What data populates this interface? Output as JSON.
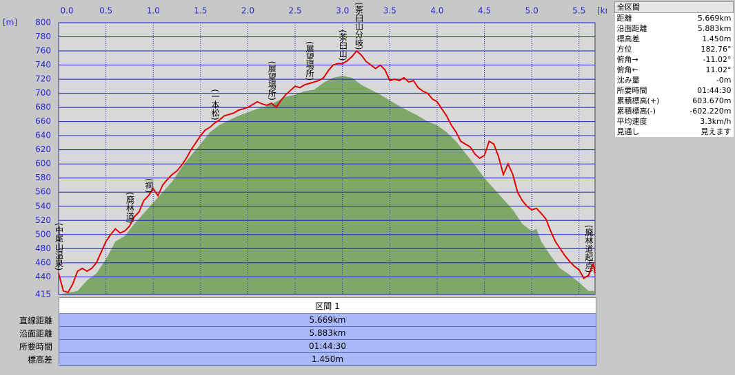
{
  "chart_data": {
    "type": "line",
    "x_unit": "[km]",
    "y_unit": "[m]",
    "xlim": [
      0,
      5.669
    ],
    "ylim": [
      415,
      800
    ],
    "xticks": [
      {
        "value": 0,
        "label": "0.0"
      },
      0.5,
      {
        "value": 1,
        "label": "1.0"
      },
      1.5,
      {
        "value": 2,
        "label": "2.0"
      },
      2.5,
      {
        "value": 3,
        "label": "3.0"
      },
      3.5,
      {
        "value": 4,
        "label": "4.0"
      },
      4.5,
      {
        "value": 5,
        "label": "5.0"
      },
      5.5
    ],
    "yticks": [
      415,
      440,
      460,
      480,
      500,
      520,
      540,
      560,
      580,
      600,
      620,
      640,
      660,
      680,
      700,
      720,
      740,
      760,
      780,
      800
    ],
    "grid": true,
    "series": [
      {
        "type": "area",
        "color": "#7ea86a",
        "x": [
          0,
          0.2,
          0.3,
          0.4,
          0.5,
          0.6,
          0.7,
          0.8,
          0.9,
          1.0,
          1.1,
          1.2,
          1.3,
          1.4,
          1.5,
          1.6,
          1.7,
          1.8,
          1.9,
          2.0,
          2.1,
          2.2,
          2.3,
          2.4,
          2.5,
          2.6,
          2.7,
          2.8,
          2.9,
          3.0,
          3.1,
          3.2,
          3.3,
          3.4,
          3.5,
          3.6,
          3.7,
          3.8,
          3.9,
          4.0,
          4.1,
          4.2,
          4.3,
          4.4,
          4.5,
          4.6,
          4.7,
          4.8,
          4.9,
          5.0,
          5.05,
          5.1,
          5.2,
          5.3,
          5.4,
          5.5,
          5.6,
          5.669
        ],
        "values": [
          415,
          420,
          435,
          445,
          465,
          490,
          498,
          515,
          530,
          545,
          560,
          575,
          595,
          612,
          628,
          645,
          655,
          662,
          668,
          673,
          678,
          682,
          688,
          695,
          698,
          703,
          705,
          715,
          722,
          725,
          722,
          712,
          705,
          698,
          690,
          682,
          675,
          668,
          660,
          655,
          645,
          632,
          615,
          598,
          580,
          565,
          550,
          535,
          515,
          505,
          508,
          490,
          470,
          452,
          443,
          432,
          420,
          420
        ]
      },
      {
        "type": "line",
        "color": "#e00000",
        "x": [
          0,
          0.05,
          0.1,
          0.15,
          0.2,
          0.25,
          0.3,
          0.35,
          0.4,
          0.45,
          0.5,
          0.55,
          0.6,
          0.65,
          0.7,
          0.75,
          0.8,
          0.85,
          0.9,
          0.95,
          1.0,
          1.05,
          1.1,
          1.15,
          1.2,
          1.25,
          1.3,
          1.35,
          1.4,
          1.45,
          1.5,
          1.55,
          1.6,
          1.65,
          1.7,
          1.75,
          1.8,
          1.85,
          1.9,
          1.95,
          2.0,
          2.05,
          2.1,
          2.15,
          2.2,
          2.25,
          2.3,
          2.35,
          2.4,
          2.45,
          2.5,
          2.55,
          2.6,
          2.65,
          2.7,
          2.75,
          2.8,
          2.85,
          2.9,
          2.95,
          3.0,
          3.05,
          3.1,
          3.15,
          3.2,
          3.25,
          3.3,
          3.35,
          3.4,
          3.45,
          3.5,
          3.55,
          3.6,
          3.65,
          3.7,
          3.75,
          3.8,
          3.85,
          3.9,
          3.95,
          4.0,
          4.05,
          4.1,
          4.15,
          4.2,
          4.25,
          4.3,
          4.35,
          4.4,
          4.45,
          4.5,
          4.55,
          4.6,
          4.65,
          4.7,
          4.75,
          4.8,
          4.85,
          4.9,
          4.95,
          5.0,
          5.05,
          5.1,
          5.15,
          5.2,
          5.25,
          5.3,
          5.35,
          5.4,
          5.45,
          5.5,
          5.55,
          5.6,
          5.65,
          5.669
        ],
        "values": [
          445,
          420,
          418,
          430,
          448,
          452,
          448,
          452,
          460,
          475,
          490,
          500,
          508,
          502,
          505,
          512,
          525,
          532,
          548,
          555,
          565,
          555,
          570,
          578,
          585,
          590,
          598,
          608,
          620,
          630,
          640,
          648,
          652,
          658,
          662,
          668,
          670,
          672,
          676,
          678,
          680,
          684,
          688,
          685,
          683,
          686,
          680,
          690,
          698,
          704,
          710,
          708,
          712,
          714,
          716,
          718,
          722,
          732,
          740,
          742,
          742,
          746,
          752,
          760,
          754,
          745,
          740,
          735,
          740,
          733,
          718,
          720,
          718,
          722,
          716,
          718,
          708,
          703,
          700,
          692,
          688,
          678,
          668,
          655,
          645,
          632,
          628,
          624,
          614,
          608,
          612,
          632,
          628,
          610,
          585,
          600,
          585,
          560,
          548,
          540,
          535,
          537,
          530,
          522,
          505,
          490,
          480,
          470,
          462,
          455,
          450,
          438,
          442,
          458,
          445
        ]
      }
    ],
    "annotations": [
      {
        "text": "(中尾山温泉)",
        "x": 0
      },
      {
        "text": "(廃林道)",
        "x": 0.75
      },
      {
        "text": "(祠)",
        "x": 0.95
      },
      {
        "text": "(一本松)",
        "x": 1.65
      },
      {
        "text": "(展望場所)",
        "x": 2.25
      },
      {
        "text": "(展望場所)",
        "x": 2.65
      },
      {
        "text": "(茶臼山)",
        "x": 3.0
      },
      {
        "text": "(茶臼山分岐)",
        "x": 3.17
      },
      {
        "text": "(廃林道起点)",
        "x": 5.6
      }
    ]
  },
  "summary": {
    "title": "全区間",
    "rows": [
      [
        "距離",
        "5.669km"
      ],
      [
        "沿面距離",
        "5.883km"
      ],
      [
        "標高差",
        "1.450m"
      ],
      [
        "方位",
        "182.76°"
      ],
      [
        "俯角→",
        "-11.02°"
      ],
      [
        "俯角←",
        "11.02°"
      ],
      [
        "沈み量",
        "-0m"
      ],
      [
        "所要時間",
        "01:44:30"
      ],
      [
        "累積標高(+)",
        "603.670m"
      ],
      [
        "累積標高(-)",
        "-602.220m"
      ],
      [
        "平均速度",
        "3.3km/h"
      ],
      [
        "見通し",
        "見えます"
      ]
    ]
  },
  "section": {
    "title": "区間 1",
    "rows": [
      [
        "直線距離",
        "5.669km"
      ],
      [
        "沿面距離",
        "5.883km"
      ],
      [
        "所要時間",
        "01:44:30"
      ],
      [
        "標高差",
        "1.450m"
      ]
    ]
  }
}
